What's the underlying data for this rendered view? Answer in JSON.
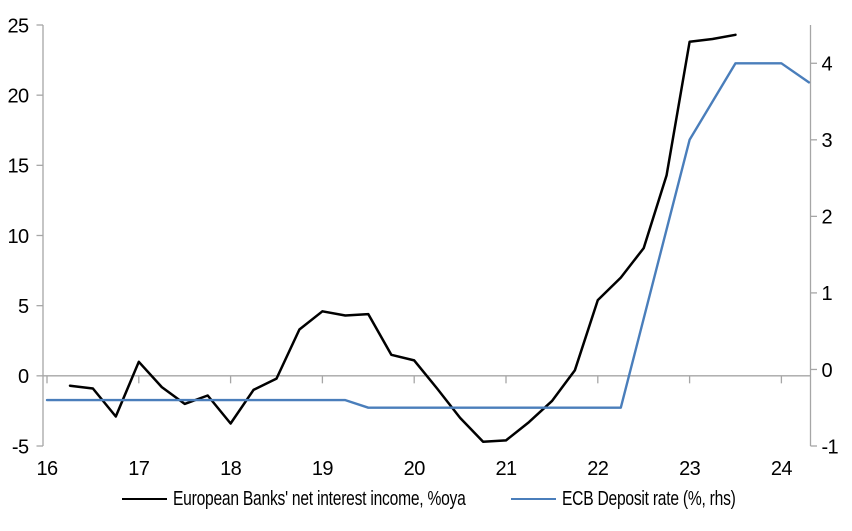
{
  "chart_data": {
    "type": "line",
    "title": "",
    "xlabel": "",
    "ylabel_left": "",
    "ylabel_right": "",
    "grid": "zero-line-only",
    "legend_position": "bottom",
    "background": "#FFFFFF",
    "axis_color": "#A6A6A6",
    "x_axis": {
      "min": 16,
      "max": 24.31,
      "ticks": [
        16,
        17,
        18,
        19,
        20,
        21,
        22,
        23,
        24
      ]
    },
    "left_axis": {
      "min": -5,
      "max": 25,
      "ticks": [
        25,
        20,
        15,
        10,
        5,
        0,
        -5
      ]
    },
    "right_axis": {
      "min": -1,
      "max": 4.5,
      "ticks": [
        4,
        3,
        2,
        1,
        0,
        -1
      ]
    },
    "series": [
      {
        "name": "European Banks' net interest income, %oya",
        "axis": "left",
        "color": "#000000",
        "width": 2.5,
        "points": [
          [
            16.25,
            -0.7
          ],
          [
            16.5,
            -0.9
          ],
          [
            16.75,
            -2.9
          ],
          [
            17.0,
            1.0
          ],
          [
            17.25,
            -0.8
          ],
          [
            17.5,
            -2.0
          ],
          [
            17.75,
            -1.4
          ],
          [
            18.0,
            -3.4
          ],
          [
            18.25,
            -1.0
          ],
          [
            18.5,
            -0.2
          ],
          [
            18.75,
            3.3
          ],
          [
            19.0,
            4.6
          ],
          [
            19.25,
            4.3
          ],
          [
            19.5,
            4.4
          ],
          [
            19.75,
            1.5
          ],
          [
            20.0,
            1.1
          ],
          [
            20.25,
            -0.9
          ],
          [
            20.5,
            -3.0
          ],
          [
            20.75,
            -4.7
          ],
          [
            21.0,
            -4.6
          ],
          [
            21.25,
            -3.3
          ],
          [
            21.5,
            -1.8
          ],
          [
            21.75,
            0.4
          ],
          [
            22.0,
            5.4
          ],
          [
            22.25,
            7.0
          ],
          [
            22.5,
            9.1
          ],
          [
            22.75,
            14.3
          ],
          [
            23.0,
            23.8
          ],
          [
            23.25,
            24.0
          ],
          [
            23.5,
            24.3
          ]
        ]
      },
      {
        "name": "ECB Deposit rate (%, rhs)",
        "axis": "right",
        "color": "#4A7EBB",
        "width": 2.4,
        "points": [
          [
            16.0,
            -0.4
          ],
          [
            19.25,
            -0.4
          ],
          [
            19.5,
            -0.5
          ],
          [
            22.25,
            -0.5
          ],
          [
            23.0,
            3.0
          ],
          [
            23.5,
            4.0
          ],
          [
            24.0,
            4.0
          ],
          [
            24.3,
            3.75
          ]
        ]
      }
    ]
  },
  "legend": {
    "items": [
      {
        "label": "European Banks' net interest income, %oya"
      },
      {
        "label": "ECB Deposit rate (%, rhs)"
      }
    ]
  }
}
